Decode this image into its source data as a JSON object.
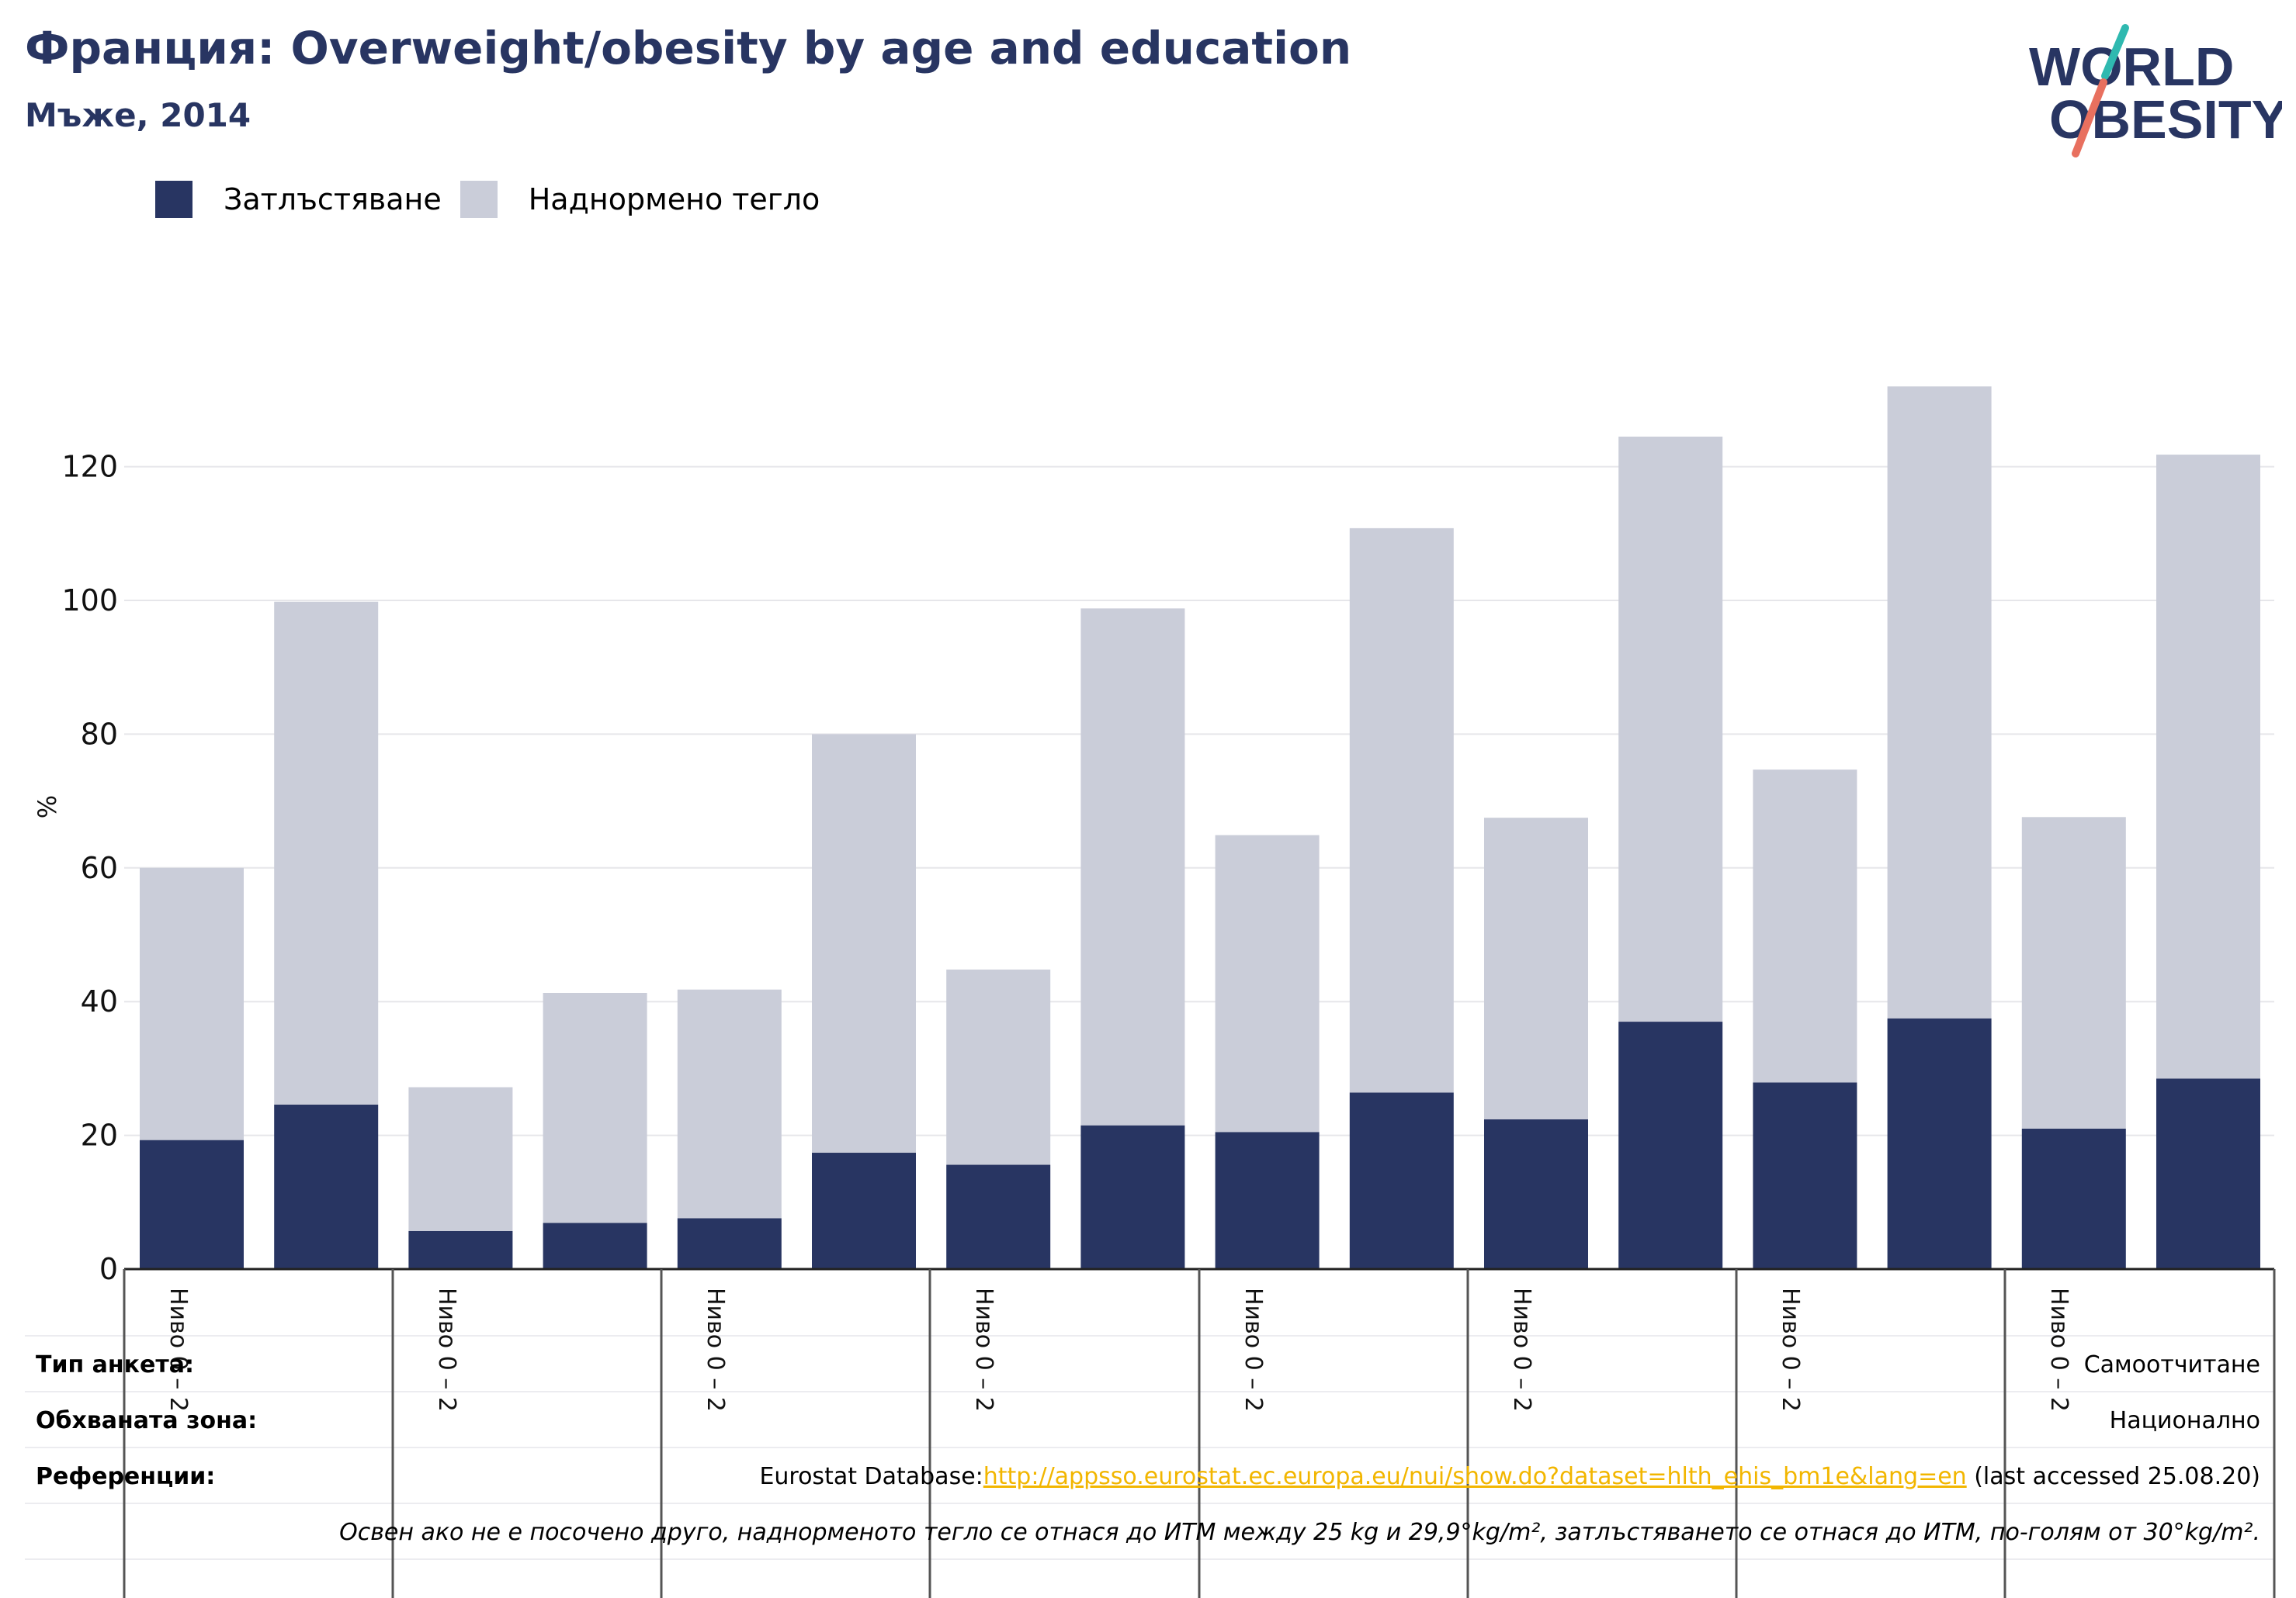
{
  "header": {
    "title": "Франция: Overweight/obesity by age and education",
    "subtitle": "Мъже, 2014"
  },
  "logo": {
    "line1": "WORLD",
    "line2": "OBESITY",
    "colors": {
      "text": "#283562",
      "slash_top": "#2fb9b0",
      "slash_bottom": "#e8705f"
    }
  },
  "legend": {
    "items": [
      {
        "label": "Затлъстяване",
        "color": "#283562"
      },
      {
        "label": "Наднормено тегло",
        "color": "#cacdd9"
      }
    ]
  },
  "colors": {
    "obesity": "#283562",
    "overweight": "#cacdd9",
    "grid": "#e6e6ea",
    "axis": "#222222",
    "link": "#f2b600"
  },
  "chart_data": {
    "type": "bar",
    "stacked": true,
    "ylabel": "%",
    "ylim": [
      0,
      132
    ],
    "yticks": [
      0,
      20,
      40,
      60,
      80,
      100,
      120
    ],
    "grid": true,
    "legend_position": "top-left",
    "group_label": "Ниво 0 – 2",
    "groups": 8,
    "bars_per_group": 2,
    "series": [
      {
        "name": "Затлъстяване",
        "values": [
          19.3,
          24.6,
          5.7,
          6.9,
          7.6,
          17.4,
          15.6,
          21.5,
          20.5,
          26.4,
          22.4,
          37.0,
          27.9,
          37.5,
          21.0,
          28.5
        ]
      },
      {
        "name": "Наднормено тегло",
        "values": [
          40.7,
          75.2,
          21.5,
          34.4,
          34.2,
          62.6,
          29.2,
          77.3,
          44.4,
          84.4,
          45.1,
          87.5,
          46.8,
          94.5,
          46.6,
          93.3
        ]
      }
    ]
  },
  "info_table": {
    "survey_type_label": "Тип анкета:",
    "survey_type_value": "Самоотчитане",
    "coverage_label": "Обхваната зона:",
    "coverage_value": "Национално",
    "references_label": "Референции:",
    "references_prefix": "Eurostat Database:",
    "references_link": "http://appsso.eurostat.ec.europa.eu/nui/show.do?dataset=hlth_ehis_bm1e&lang=en",
    "references_suffix": " (last accessed 25.08.20)",
    "note": "Освен ако не е посочено друго, наднорменото тегло се отнася до ИТМ между 25 kg и 29,9°kg/m², затлъстяването се отнася до ИТМ, по-голям от 30°kg/m²."
  }
}
